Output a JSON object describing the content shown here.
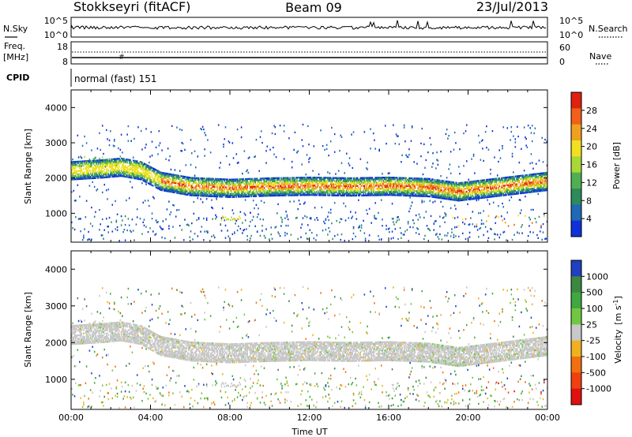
{
  "header": {
    "station": "Stokkseyri (fitACF)",
    "beam": "Beam 09",
    "date": "23/Jul/2013"
  },
  "strips": {
    "nsky": {
      "label": "N.Sky",
      "ticks": [
        "10^5",
        "10^0"
      ],
      "right_label": "N.Search",
      "right_ticks": [
        "10^5",
        "10^0"
      ]
    },
    "freq": {
      "label_line1": "Freq.",
      "label_line2": "[MHz]",
      "ticks": [
        "18",
        "8"
      ],
      "right_label": "Nave",
      "right_ticks": [
        "60",
        "0"
      ]
    },
    "cpid": {
      "label": "CPID",
      "text": "normal (fast) 151"
    }
  },
  "chart_data": [
    {
      "type": "heatmap",
      "name": "power",
      "ylabel": "Slant Range [km]",
      "xlabel": "",
      "ylim": [
        180,
        4500
      ],
      "yticks": [
        1000,
        2000,
        3000,
        4000
      ],
      "colorbar": {
        "label": "Power [dB]",
        "range": [
          0,
          32
        ],
        "ticks": [
          "4",
          "8",
          "12",
          "16",
          "20",
          "24",
          "28"
        ],
        "colors": [
          "#1030d8",
          "#1e6ab4",
          "#2e8a5a",
          "#50b050",
          "#a8d838",
          "#f0e020",
          "#f0a020",
          "#f06018",
          "#e02010"
        ]
      },
      "band_center_km": [
        [
          0,
          2200
        ],
        [
          1.5,
          2250
        ],
        [
          2.5,
          2300
        ],
        [
          3.5,
          2200
        ],
        [
          4.5,
          1900
        ],
        [
          6,
          1750
        ],
        [
          8,
          1700
        ],
        [
          10,
          1740
        ],
        [
          12,
          1760
        ],
        [
          14,
          1740
        ],
        [
          16,
          1760
        ],
        [
          18,
          1720
        ],
        [
          19.5,
          1600
        ],
        [
          21,
          1700
        ],
        [
          22.5,
          1800
        ],
        [
          24,
          1900
        ]
      ]
    },
    {
      "type": "heatmap",
      "name": "velocity",
      "ylabel": "Slant Range [km]",
      "xlabel": "Time UT",
      "ylim": [
        180,
        4500
      ],
      "yticks": [
        1000,
        2000,
        3000,
        4000
      ],
      "xticks": [
        "00:00",
        "04:00",
        "08:00",
        "12:00",
        "16:00",
        "20:00",
        "00:00"
      ],
      "colorbar": {
        "label_main": "Velocity",
        "label_unit": "[m s",
        "label_exp": "-1",
        "label_close": "]",
        "ticks": [
          "1000",
          "500",
          "100",
          "25",
          "-25",
          "-100",
          "-500",
          "-1000"
        ],
        "colors": [
          "#2040c0",
          "#3c8840",
          "#40a840",
          "#70c840",
          "#c8c8c8",
          "#f0b020",
          "#f07010",
          "#f04010",
          "#e01010"
        ]
      }
    }
  ]
}
